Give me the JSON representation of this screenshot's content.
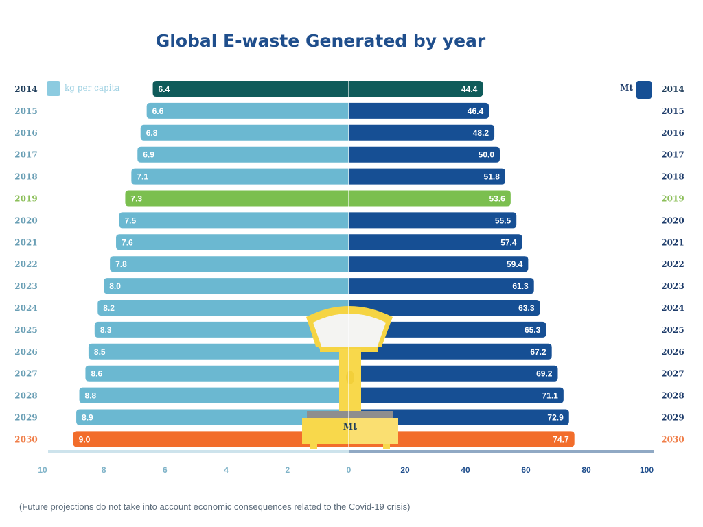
{
  "chart_data": {
    "type": "bar",
    "subtype": "diverging-horizontal-bar",
    "title": "Global E-waste Generated by year",
    "categories": [
      "2014",
      "2015",
      "2016",
      "2017",
      "2018",
      "2019",
      "2020",
      "2021",
      "2022",
      "2023",
      "2024",
      "2025",
      "2026",
      "2027",
      "2028",
      "2029",
      "2030"
    ],
    "series": [
      {
        "name": "kg per capita",
        "side": "left",
        "values": [
          6.4,
          6.6,
          6.8,
          6.9,
          7.1,
          7.3,
          7.5,
          7.6,
          7.8,
          8.0,
          8.2,
          8.3,
          8.5,
          8.6,
          8.8,
          8.9,
          9.0
        ],
        "labels": [
          "6.4",
          "6.6",
          "6.8",
          "6.9",
          "7.1",
          "7.3",
          "7.5",
          "7.6",
          "7.8",
          "8.0",
          "8.2",
          "8.3",
          "8.5",
          "8.6",
          "8.8",
          "8.9",
          "9.0"
        ],
        "axis_range": [
          0,
          10
        ],
        "ticks": [
          "10",
          "8",
          "6",
          "4",
          "2",
          "0"
        ],
        "color": "#6bb8d1"
      },
      {
        "name": "Mt",
        "side": "right",
        "values": [
          44.4,
          46.4,
          48.2,
          50.0,
          51.8,
          53.6,
          55.5,
          57.4,
          59.4,
          61.3,
          63.3,
          65.3,
          67.2,
          69.2,
          71.1,
          72.9,
          74.7
        ],
        "labels": [
          "44.4",
          "46.4",
          "48.2",
          "50.0",
          "51.8",
          "53.6",
          "55.5",
          "57.4",
          "59.4",
          "61.3",
          "63.3",
          "65.3",
          "67.2",
          "69.2",
          "71.1",
          "72.9",
          "74.7"
        ],
        "axis_range": [
          0,
          100
        ],
        "ticks": [
          "20",
          "40",
          "60",
          "80",
          "100"
        ],
        "color": "#164f94"
      }
    ],
    "highlight_rows": {
      "2014": "#0f5b5a",
      "2019": "#7bbf4f",
      "2030": "#f26d2b"
    },
    "year_label_colors": {
      "default": "#6a9fb5",
      "right_default": "#1f3d6b",
      "2014": "#1f3d5a",
      "2019": "#8cbf5a",
      "2030": "#f07f4a"
    },
    "legend": [
      {
        "label": "kg per capita",
        "color": "#8ccbe0",
        "position": "top-left"
      },
      {
        "label": "Mt",
        "color": "#164f94",
        "position": "top-right"
      }
    ],
    "illustration": {
      "type": "weighing-scale",
      "label": "Mt"
    },
    "grid": false,
    "footnote": "(Future projections do not take into account economic consequences related to the Covid-19 crisis)"
  }
}
